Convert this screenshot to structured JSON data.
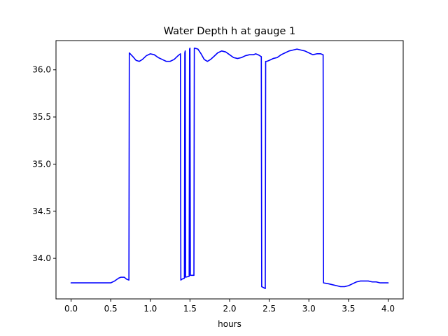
{
  "chart_data": {
    "type": "line",
    "title": "Water Depth h at gauge 1",
    "xlabel": "hours",
    "ylabel": "",
    "xlim": [
      -0.19,
      4.19
    ],
    "ylim": [
      33.57,
      36.31
    ],
    "x_ticks": [
      0.0,
      0.5,
      1.0,
      1.5,
      2.0,
      2.5,
      3.0,
      3.5,
      4.0
    ],
    "x_tick_labels": [
      "0.0",
      "0.5",
      "1.0",
      "1.5",
      "2.0",
      "2.5",
      "3.0",
      "3.5",
      "4.0"
    ],
    "y_ticks": [
      34.0,
      34.5,
      35.0,
      35.5,
      36.0
    ],
    "y_tick_labels": [
      "34.0",
      "34.5",
      "35.0",
      "35.5",
      "36.0"
    ],
    "grid": false,
    "series": [
      {
        "color": "#0000ff",
        "x": [
          0.0,
          0.2,
          0.4,
          0.5,
          0.55,
          0.6,
          0.63,
          0.67,
          0.7,
          0.73,
          0.735,
          0.78,
          0.82,
          0.86,
          0.9,
          0.95,
          1.0,
          1.05,
          1.1,
          1.15,
          1.2,
          1.25,
          1.3,
          1.35,
          1.38,
          1.385,
          1.4,
          1.43,
          1.435,
          1.44,
          1.445,
          1.49,
          1.495,
          1.5,
          1.505,
          1.55,
          1.555,
          1.56,
          1.6,
          1.64,
          1.68,
          1.72,
          1.76,
          1.8,
          1.85,
          1.9,
          1.95,
          2.0,
          2.05,
          2.1,
          2.15,
          2.2,
          2.25,
          2.3,
          2.33,
          2.36,
          2.38,
          2.4,
          2.405,
          2.45,
          2.455,
          2.47,
          2.5,
          2.55,
          2.6,
          2.65,
          2.7,
          2.75,
          2.8,
          2.85,
          2.9,
          2.95,
          3.0,
          3.05,
          3.1,
          3.15,
          3.18,
          3.185,
          3.25,
          3.3,
          3.35,
          3.4,
          3.45,
          3.5,
          3.55,
          3.6,
          3.65,
          3.7,
          3.75,
          3.8,
          3.85,
          3.9,
          3.95,
          4.0
        ],
        "y": [
          33.74,
          33.74,
          33.74,
          33.74,
          33.76,
          33.79,
          33.8,
          33.8,
          33.78,
          33.77,
          36.18,
          36.14,
          36.1,
          36.09,
          36.11,
          36.15,
          36.17,
          36.16,
          36.13,
          36.11,
          36.09,
          36.09,
          36.11,
          36.15,
          36.17,
          33.77,
          33.78,
          33.79,
          36.18,
          36.2,
          33.8,
          33.81,
          36.22,
          36.23,
          33.82,
          33.82,
          36.23,
          36.23,
          36.22,
          36.17,
          36.11,
          36.09,
          36.11,
          36.14,
          36.18,
          36.2,
          36.19,
          36.16,
          36.13,
          36.12,
          36.13,
          36.15,
          36.16,
          36.16,
          36.17,
          36.16,
          36.15,
          36.14,
          33.7,
          33.68,
          36.09,
          36.09,
          36.1,
          36.12,
          36.13,
          36.16,
          36.18,
          36.2,
          36.21,
          36.22,
          36.21,
          36.2,
          36.18,
          36.16,
          36.17,
          36.17,
          36.16,
          33.74,
          33.73,
          33.72,
          33.71,
          33.7,
          33.7,
          33.71,
          33.73,
          33.75,
          33.76,
          33.76,
          33.76,
          33.75,
          33.75,
          33.74,
          33.74,
          33.74
        ]
      }
    ]
  }
}
